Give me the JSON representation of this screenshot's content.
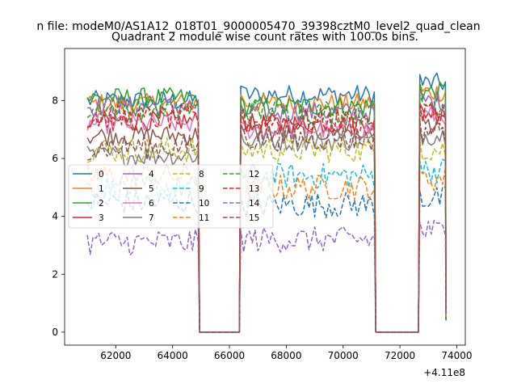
{
  "suptitle": "n file: modeM0/AS1A12_018T01_9000005470_39398cztM0_level2_quad_clean",
  "title": "Quadrant 2 module wise count rates with 100.0s bins.",
  "chart_data": {
    "type": "line",
    "title": "Quadrant 2 module wise count rates with 100.0s bins.",
    "xlabel": "",
    "ylabel": "",
    "x_offset_label": "+4.11e8",
    "xlim": [
      60200,
      74300
    ],
    "ylim": [
      -0.45,
      9.8
    ],
    "xticks": [
      62000,
      64000,
      66000,
      68000,
      70000,
      72000,
      74000
    ],
    "xtick_labels": [
      "62000",
      "64000",
      "66000",
      "68000",
      "70000",
      "72000",
      "74000"
    ],
    "yticks": [
      0,
      2,
      4,
      6,
      8
    ],
    "ytick_labels": [
      "0",
      "2",
      "4",
      "6",
      "8"
    ],
    "grid": false,
    "legend_placement": "center-left, 4 columns",
    "segments": [
      [
        61000,
        64900
      ],
      [
        66400,
        71100
      ],
      [
        72700,
        73600
      ]
    ],
    "gaps": [
      [
        64900,
        66400
      ],
      [
        71100,
        72700
      ]
    ],
    "series": [
      {
        "name": "0",
        "style": "solid",
        "color": "#1f77b4",
        "levels": [
          8.0,
          8.2,
          8.6
        ]
      },
      {
        "name": "1",
        "style": "solid",
        "color": "#ff7f0e",
        "levels": [
          7.9,
          7.9,
          8.3
        ]
      },
      {
        "name": "2",
        "style": "solid",
        "color": "#2ca02c",
        "levels": [
          8.1,
          7.8,
          8.3
        ]
      },
      {
        "name": "3",
        "style": "solid",
        "color": "#d62728",
        "levels": [
          7.3,
          7.2,
          7.6
        ]
      },
      {
        "name": "4",
        "style": "solid",
        "color": "#9467bd",
        "levels": [
          7.8,
          7.6,
          8.0
        ]
      },
      {
        "name": "5",
        "style": "solid",
        "color": "#8c564b",
        "levels": [
          6.8,
          6.9,
          7.2
        ]
      },
      {
        "name": "6",
        "style": "solid",
        "color": "#e377c2",
        "levels": [
          7.2,
          7.0,
          7.5
        ]
      },
      {
        "name": "7",
        "style": "solid",
        "color": "#7f7f7f",
        "levels": [
          6.1,
          6.6,
          6.8
        ]
      },
      {
        "name": "8",
        "style": "dashed",
        "color": "#bcbd22",
        "levels": [
          6.3,
          6.3,
          6.3
        ]
      },
      {
        "name": "9",
        "style": "dashed",
        "color": "#17becf",
        "levels": [
          5.0,
          5.4,
          5.6
        ]
      },
      {
        "name": "10",
        "style": "dashed",
        "color": "#1f77b4",
        "levels": [
          4.5,
          4.4,
          4.6
        ]
      },
      {
        "name": "11",
        "style": "dashed",
        "color": "#ff7f0e",
        "levels": [
          5.4,
          5.0,
          5.3
        ]
      },
      {
        "name": "12",
        "style": "dashed",
        "color": "#2ca02c",
        "levels": [
          7.7,
          7.6,
          7.9
        ]
      },
      {
        "name": "13",
        "style": "dashed",
        "color": "#d62728",
        "levels": [
          7.4,
          7.3,
          7.6
        ]
      },
      {
        "name": "14",
        "style": "dashed",
        "color": "#9467bd",
        "levels": [
          3.1,
          3.2,
          3.5
        ]
      },
      {
        "name": "15",
        "style": "dashed",
        "color": "#8c564b",
        "levels": [
          6.4,
          6.7,
          7.0
        ]
      }
    ]
  }
}
